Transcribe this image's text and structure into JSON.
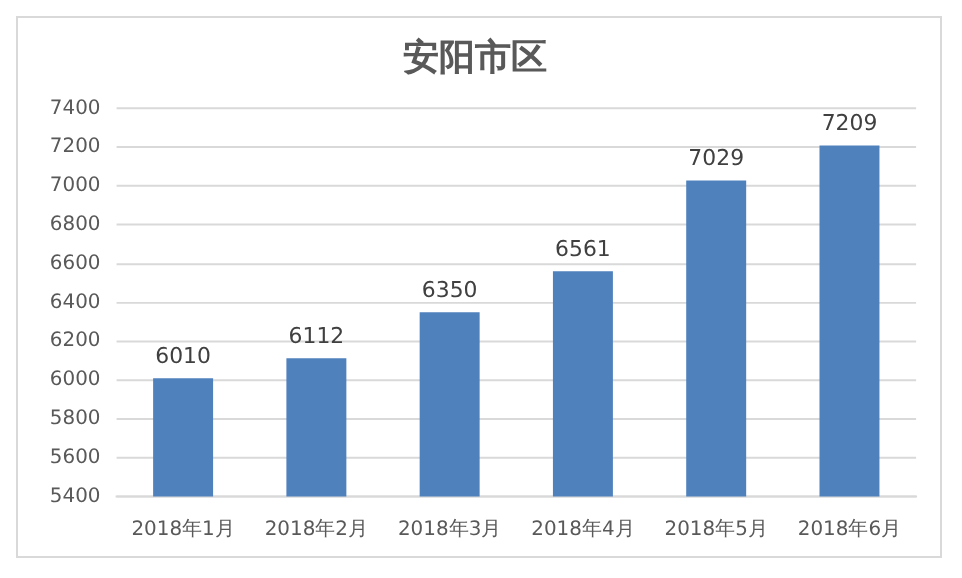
{
  "chart_data": {
    "type": "bar",
    "title": "安阳市区",
    "categories": [
      "2018年1月",
      "2018年2月",
      "2018年3月",
      "2018年4月",
      "2018年5月",
      "2018年6月"
    ],
    "values": [
      6010,
      6112,
      6350,
      6561,
      7029,
      7209
    ],
    "color": "#4f81bd",
    "ylim": [
      5400,
      7400
    ],
    "yticks": [
      5400,
      5600,
      5800,
      6000,
      6200,
      6400,
      6600,
      6800,
      7000,
      7200,
      7400
    ],
    "grid": "y",
    "data_labels": true
  }
}
